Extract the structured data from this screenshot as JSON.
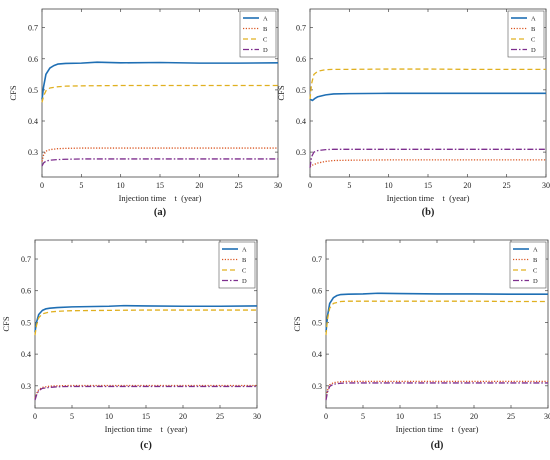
{
  "colors": {
    "A": "#1f6fb4",
    "B": "#d9531e",
    "C": "#e0b020",
    "D": "#7e2f8e"
  },
  "chart_data": [
    {
      "panel_label": "(a)",
      "type": "line",
      "xlabel": "Injection time    t  (year)",
      "ylabel": "CFS",
      "xlim": [
        0,
        30
      ],
      "ylim": [
        0.22,
        0.76
      ],
      "xticks": [
        0,
        5,
        10,
        15,
        20,
        25,
        30
      ],
      "yticks": [
        0.3,
        0.4,
        0.5,
        0.6,
        0.7
      ],
      "xtick_labels": [
        "0",
        "5",
        "10",
        "15",
        "20",
        "25",
        "30"
      ],
      "ytick_labels": [
        "0.3",
        "0.4",
        "0.5",
        "0.6",
        "0.7"
      ],
      "grid": false,
      "legend": "top-right",
      "series": [
        {
          "name": "A",
          "style": "solid",
          "x": [
            0,
            0.2,
            0.5,
            1,
            1.5,
            2,
            3,
            5,
            7,
            10,
            15,
            20,
            25,
            30
          ],
          "y": [
            0.47,
            0.51,
            0.55,
            0.57,
            0.578,
            0.583,
            0.585,
            0.586,
            0.589,
            0.587,
            0.588,
            0.586,
            0.586,
            0.587
          ]
        },
        {
          "name": "B",
          "style": "dotted",
          "x": [
            0,
            0.2,
            0.5,
            1,
            2,
            3,
            5,
            10,
            15,
            20,
            25,
            30
          ],
          "y": [
            0.27,
            0.29,
            0.303,
            0.308,
            0.311,
            0.312,
            0.313,
            0.313,
            0.313,
            0.313,
            0.313,
            0.313
          ]
        },
        {
          "name": "C",
          "style": "dashed",
          "x": [
            0,
            0.2,
            0.5,
            1,
            2,
            3,
            5,
            10,
            15,
            20,
            25,
            30
          ],
          "y": [
            0.46,
            0.48,
            0.497,
            0.506,
            0.51,
            0.512,
            0.513,
            0.514,
            0.514,
            0.514,
            0.514,
            0.514
          ]
        },
        {
          "name": "D",
          "style": "dashdot",
          "x": [
            0,
            0.2,
            0.5,
            1,
            2,
            3,
            5,
            10,
            15,
            20,
            25,
            30
          ],
          "y": [
            0.255,
            0.265,
            0.271,
            0.274,
            0.276,
            0.277,
            0.278,
            0.278,
            0.278,
            0.278,
            0.278,
            0.278
          ]
        }
      ]
    },
    {
      "panel_label": "(b)",
      "type": "line",
      "xlabel": "Injection time    t  (year)",
      "ylabel": "CFS",
      "xlim": [
        0,
        30
      ],
      "ylim": [
        0.22,
        0.76
      ],
      "xticks": [
        0,
        5,
        10,
        15,
        20,
        25,
        30
      ],
      "yticks": [
        0.3,
        0.4,
        0.5,
        0.6,
        0.7
      ],
      "xtick_labels": [
        "0",
        "5",
        "10",
        "15",
        "20",
        "25",
        "30"
      ],
      "ytick_labels": [
        "0.3",
        "0.4",
        "0.5",
        "0.6",
        "0.7"
      ],
      "grid": false,
      "legend": "top-right",
      "series": [
        {
          "name": "A",
          "style": "solid",
          "x": [
            0,
            0.3,
            0.6,
            1,
            2,
            3,
            5,
            10,
            15,
            20,
            25,
            30
          ],
          "y": [
            0.47,
            0.466,
            0.472,
            0.478,
            0.484,
            0.487,
            0.488,
            0.489,
            0.489,
            0.489,
            0.489,
            0.489
          ]
        },
        {
          "name": "B",
          "style": "dotted",
          "x": [
            0,
            0.3,
            1,
            2,
            3,
            5,
            10,
            15,
            20,
            25,
            30
          ],
          "y": [
            0.252,
            0.258,
            0.265,
            0.27,
            0.273,
            0.274,
            0.275,
            0.275,
            0.275,
            0.275,
            0.275
          ]
        },
        {
          "name": "C",
          "style": "dashed",
          "x": [
            0,
            0.2,
            0.5,
            1,
            2,
            3,
            5,
            10,
            15,
            20,
            25,
            30
          ],
          "y": [
            0.47,
            0.52,
            0.55,
            0.56,
            0.565,
            0.566,
            0.566,
            0.567,
            0.567,
            0.566,
            0.566,
            0.566
          ]
        },
        {
          "name": "D",
          "style": "dashdot",
          "x": [
            0,
            0.2,
            0.5,
            1,
            2,
            3,
            5,
            10,
            15,
            20,
            25,
            30
          ],
          "y": [
            0.25,
            0.285,
            0.3,
            0.305,
            0.308,
            0.309,
            0.309,
            0.309,
            0.309,
            0.309,
            0.309,
            0.309
          ]
        }
      ]
    },
    {
      "panel_label": "(c)",
      "type": "line",
      "xlabel": "Injection time    t  (year)",
      "ylabel": "CFS",
      "xlim": [
        0,
        30
      ],
      "ylim": [
        0.23,
        0.76
      ],
      "xticks": [
        0,
        5,
        10,
        15,
        20,
        25,
        30
      ],
      "yticks": [
        0.3,
        0.4,
        0.5,
        0.6,
        0.7
      ],
      "xtick_labels": [
        "0",
        "5",
        "10",
        "15",
        "20",
        "25",
        "30"
      ],
      "ytick_labels": [
        "0.3",
        "0.4",
        "0.5",
        "0.6",
        "0.7"
      ],
      "grid": false,
      "legend": "top-right",
      "series": [
        {
          "name": "A",
          "style": "solid",
          "x": [
            0,
            0.2,
            0.5,
            1,
            1.5,
            2,
            3,
            5,
            10,
            12,
            15,
            20,
            25,
            30
          ],
          "y": [
            0.47,
            0.5,
            0.525,
            0.538,
            0.543,
            0.545,
            0.547,
            0.549,
            0.551,
            0.553,
            0.552,
            0.551,
            0.551,
            0.552
          ]
        },
        {
          "name": "B",
          "style": "dotted",
          "x": [
            0,
            0.2,
            0.5,
            1,
            2,
            3,
            5,
            10,
            15,
            20,
            25,
            30
          ],
          "y": [
            0.26,
            0.275,
            0.288,
            0.295,
            0.299,
            0.3,
            0.301,
            0.301,
            0.301,
            0.301,
            0.301,
            0.301
          ]
        },
        {
          "name": "C",
          "style": "dashed",
          "x": [
            0,
            0.2,
            0.5,
            1,
            2,
            3,
            5,
            10,
            15,
            20,
            25,
            30
          ],
          "y": [
            0.46,
            0.49,
            0.515,
            0.527,
            0.533,
            0.535,
            0.537,
            0.538,
            0.539,
            0.539,
            0.539,
            0.539
          ]
        },
        {
          "name": "D",
          "style": "dashdot",
          "x": [
            0,
            0.2,
            0.5,
            1,
            2,
            3,
            5,
            10,
            15,
            20,
            25,
            30
          ],
          "y": [
            0.255,
            0.27,
            0.285,
            0.292,
            0.295,
            0.297,
            0.298,
            0.298,
            0.298,
            0.298,
            0.298,
            0.298
          ]
        }
      ]
    },
    {
      "panel_label": "(d)",
      "type": "line",
      "xlabel": "Injection time    t  (year)",
      "ylabel": "CFS",
      "xlim": [
        0,
        30
      ],
      "ylim": [
        0.23,
        0.76
      ],
      "xticks": [
        0,
        5,
        10,
        15,
        20,
        25,
        30
      ],
      "yticks": [
        0.3,
        0.4,
        0.5,
        0.6,
        0.7
      ],
      "xtick_labels": [
        "0",
        "5",
        "10",
        "15",
        "20",
        "25",
        "30"
      ],
      "ytick_labels": [
        "0.3",
        "0.4",
        "0.5",
        "0.6",
        "0.7"
      ],
      "grid": false,
      "legend": "top-right",
      "series": [
        {
          "name": "A",
          "style": "solid",
          "x": [
            0,
            0.2,
            0.5,
            1,
            1.5,
            2,
            3,
            5,
            7,
            10,
            15,
            20,
            25,
            30
          ],
          "y": [
            0.47,
            0.52,
            0.56,
            0.578,
            0.585,
            0.588,
            0.589,
            0.59,
            0.592,
            0.591,
            0.59,
            0.59,
            0.589,
            0.589
          ]
        },
        {
          "name": "B",
          "style": "dotted",
          "x": [
            0,
            0.2,
            0.5,
            1,
            2,
            3,
            5,
            10,
            15,
            20,
            25,
            30
          ],
          "y": [
            0.26,
            0.285,
            0.303,
            0.31,
            0.313,
            0.314,
            0.314,
            0.314,
            0.314,
            0.314,
            0.314,
            0.314
          ]
        },
        {
          "name": "C",
          "style": "dashed",
          "x": [
            0,
            0.2,
            0.5,
            1,
            2,
            3,
            5,
            10,
            15,
            20,
            25,
            30
          ],
          "y": [
            0.46,
            0.51,
            0.545,
            0.56,
            0.566,
            0.567,
            0.567,
            0.567,
            0.567,
            0.567,
            0.566,
            0.566
          ]
        },
        {
          "name": "D",
          "style": "dashdot",
          "x": [
            0,
            0.2,
            0.5,
            1,
            2,
            3,
            5,
            10,
            15,
            20,
            25,
            30
          ],
          "y": [
            0.255,
            0.28,
            0.298,
            0.305,
            0.308,
            0.309,
            0.309,
            0.309,
            0.309,
            0.309,
            0.309,
            0.309
          ]
        }
      ]
    }
  ]
}
